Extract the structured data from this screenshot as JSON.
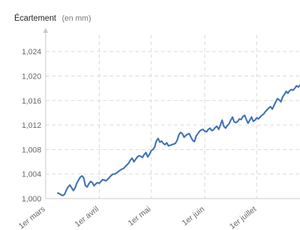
{
  "chart_data": {
    "type": "line",
    "title": "",
    "ylabel": "Écartement",
    "yunit": "(en mm)",
    "ylim": [
      1.0,
      1.026
    ],
    "yticks": [
      "1,000",
      "1,004",
      "1,008",
      "1,012",
      "1,016",
      "1,020",
      "1,024"
    ],
    "yticks_values": [
      1.0,
      1.004,
      1.008,
      1.012,
      1.016,
      1.02,
      1.024
    ],
    "xticks": [
      "1er mars",
      "1er avril",
      "1er mai",
      "1er juin",
      "1er juillet"
    ],
    "xticks_values": [
      "03-01",
      "04-01",
      "05-01",
      "06-01",
      "07-01"
    ],
    "xlim": [
      "03-01",
      "07-26"
    ],
    "grid": true,
    "series": [
      {
        "color": "#3f73b5",
        "x": [
          "03-08",
          "03-09",
          "03-10",
          "03-11",
          "03-12",
          "03-13",
          "03-14",
          "03-15",
          "03-16",
          "03-17",
          "03-18",
          "03-19",
          "03-20",
          "03-21",
          "03-22",
          "03-23",
          "03-24",
          "03-25",
          "03-26",
          "03-27",
          "03-28",
          "03-29",
          "03-30",
          "03-31",
          "04-01",
          "04-02",
          "04-03",
          "04-04",
          "04-05",
          "04-06",
          "04-07",
          "04-08",
          "04-09",
          "04-10",
          "04-11",
          "04-12",
          "04-13",
          "04-14",
          "04-15",
          "04-16",
          "04-17",
          "04-18",
          "04-19",
          "04-20",
          "04-21",
          "04-22",
          "04-23",
          "04-24",
          "04-25",
          "04-26",
          "04-27",
          "04-28",
          "04-29",
          "04-30",
          "05-01",
          "05-02",
          "05-03",
          "05-04",
          "05-05",
          "05-06",
          "05-07",
          "05-08",
          "05-09",
          "05-10",
          "05-11",
          "05-12",
          "05-13",
          "05-14",
          "05-15",
          "05-16",
          "05-17",
          "05-18",
          "05-19",
          "05-20",
          "05-21",
          "05-22",
          "05-23",
          "05-24",
          "05-25",
          "05-26",
          "05-27",
          "05-28",
          "05-29",
          "05-30",
          "05-31",
          "06-01",
          "06-02",
          "06-03",
          "06-04",
          "06-05",
          "06-06",
          "06-07",
          "06-08",
          "06-09",
          "06-10",
          "06-11",
          "06-12",
          "06-13",
          "06-14",
          "06-15",
          "06-16",
          "06-17",
          "06-18",
          "06-19",
          "06-20",
          "06-21",
          "06-22",
          "06-23",
          "06-24",
          "06-25",
          "06-26",
          "06-27",
          "06-28",
          "06-29",
          "06-30",
          "07-01",
          "07-02",
          "07-03",
          "07-04",
          "07-05",
          "07-06",
          "07-07",
          "07-08",
          "07-09",
          "07-10",
          "07-11",
          "07-12",
          "07-13",
          "07-14",
          "07-15",
          "07-16",
          "07-17",
          "07-18",
          "07-19",
          "07-20",
          "07-21",
          "07-22",
          "07-23",
          "07-24",
          "07-25",
          "07-26"
        ],
        "y": [
          1.0009,
          1.0008,
          1.0006,
          1.0005,
          1.0007,
          1.0014,
          1.0019,
          1.0022,
          1.0018,
          1.0013,
          1.0017,
          1.0025,
          1.003,
          1.0035,
          1.0037,
          1.0034,
          1.0021,
          1.0019,
          1.0024,
          1.0028,
          1.0026,
          1.0021,
          1.0024,
          1.0026,
          1.0025,
          1.0028,
          1.0031,
          1.003,
          1.0029,
          1.0032,
          1.0035,
          1.0038,
          1.004,
          1.004,
          1.0042,
          1.0044,
          1.0046,
          1.0048,
          1.0049,
          1.0052,
          1.0055,
          1.0058,
          1.0063,
          1.0066,
          1.006,
          1.0064,
          1.0068,
          1.007,
          1.0069,
          1.0067,
          1.0072,
          1.0075,
          1.0068,
          1.0072,
          1.0078,
          1.008,
          1.0084,
          1.0094,
          1.0098,
          1.0092,
          1.0094,
          1.009,
          1.0088,
          1.0091,
          1.0086,
          1.0087,
          1.0088,
          1.0089,
          1.009,
          1.0095,
          1.0104,
          1.0108,
          1.0106,
          1.01,
          1.0103,
          1.0105,
          1.0106,
          1.01,
          1.0095,
          1.0093,
          1.0102,
          1.0106,
          1.011,
          1.0112,
          1.0113,
          1.011,
          1.0109,
          1.0113,
          1.0115,
          1.0111,
          1.0112,
          1.0116,
          1.0118,
          1.0113,
          1.012,
          1.0128,
          1.0118,
          1.0115,
          1.0119,
          1.0122,
          1.0128,
          1.0133,
          1.0125,
          1.0124,
          1.0126,
          1.013,
          1.0129,
          1.0134,
          1.0136,
          1.0129,
          1.0123,
          1.0128,
          1.0133,
          1.0126,
          1.0128,
          1.0132,
          1.013,
          1.0133,
          1.0136,
          1.0138,
          1.0142,
          1.0145,
          1.0148,
          1.015,
          1.0146,
          1.0152,
          1.0158,
          1.0163,
          1.0161,
          1.0158,
          1.0166,
          1.017,
          1.0175,
          1.0172,
          1.0176,
          1.0178,
          1.0177,
          1.018,
          1.0184,
          1.0182,
          1.0185
        ]
      }
    ]
  }
}
